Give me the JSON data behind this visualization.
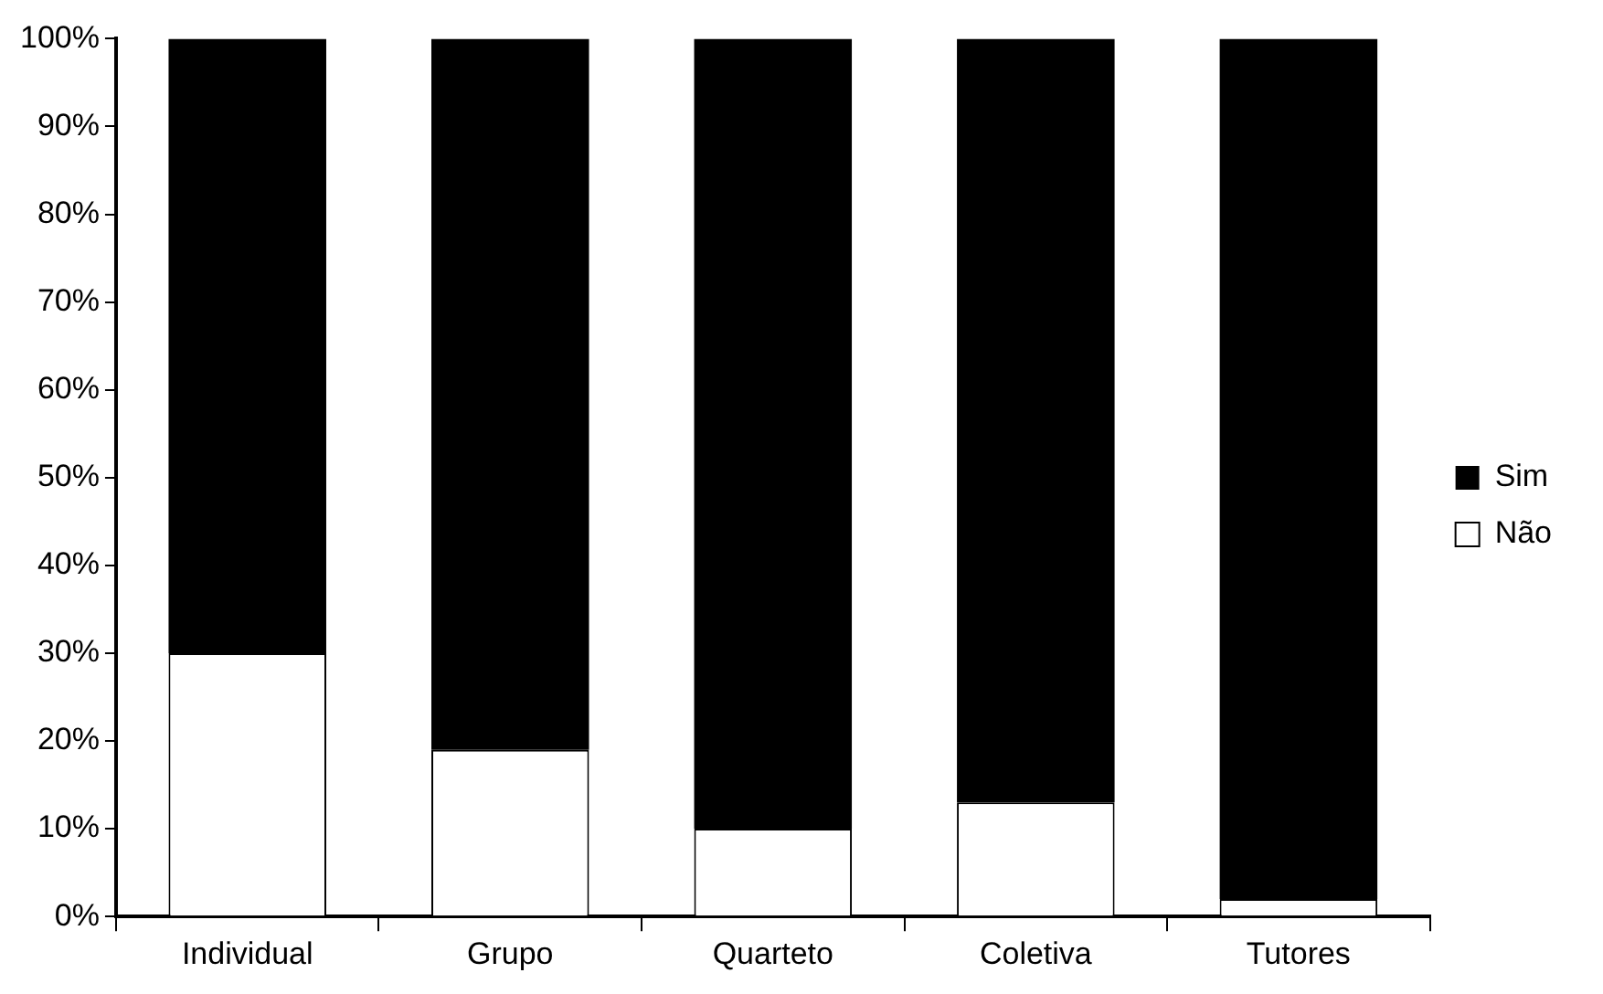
{
  "chart_data": {
    "type": "bar",
    "stacked": true,
    "categories": [
      "Individual",
      "Grupo",
      "Quarteto",
      "Coletiva",
      "Tutores"
    ],
    "series": [
      {
        "name": "Não",
        "color": "#ffffff",
        "values": [
          30,
          19,
          10,
          13,
          2
        ]
      },
      {
        "name": "Sim",
        "color": "#000000",
        "values": [
          70,
          81,
          90,
          87,
          98
        ]
      }
    ],
    "ylim": [
      0,
      100
    ],
    "yticks": [
      {
        "value": 0,
        "label": "0%"
      },
      {
        "value": 10,
        "label": "10%"
      },
      {
        "value": 20,
        "label": "20%"
      },
      {
        "value": 30,
        "label": "30%"
      },
      {
        "value": 40,
        "label": "40%"
      },
      {
        "value": 50,
        "label": "50%"
      },
      {
        "value": 60,
        "label": "60%"
      },
      {
        "value": 70,
        "label": "70%"
      },
      {
        "value": 80,
        "label": "80%"
      },
      {
        "value": 90,
        "label": "90%"
      },
      {
        "value": 100,
        "label": "100%"
      }
    ],
    "grid": false,
    "legend": "right"
  }
}
